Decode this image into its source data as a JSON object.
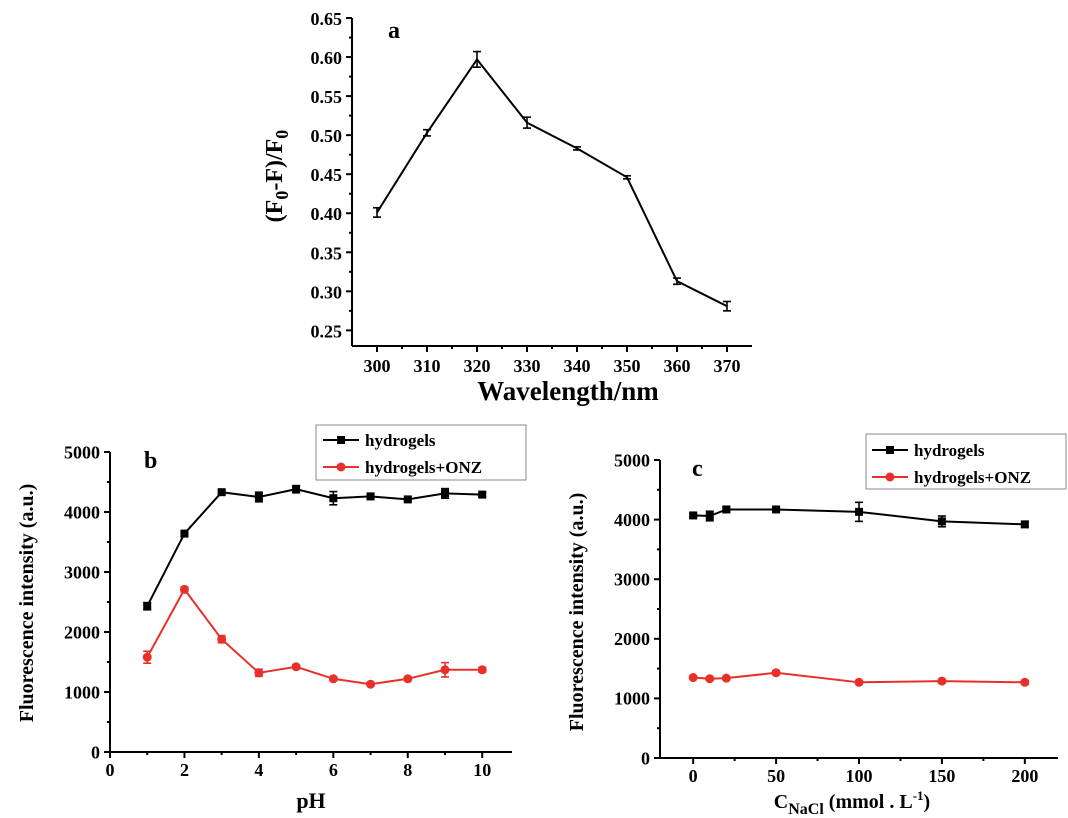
{
  "chart_data": [
    {
      "type": "line",
      "panel": "a",
      "xlabel": "Wavelength/nm",
      "ylabel_main": "(F",
      "ylabel_parts": [
        "(F",
        "0",
        "-F)/F",
        "0"
      ],
      "xlim": [
        295,
        375
      ],
      "ylim": [
        0.23,
        0.65
      ],
      "xticks": [
        "300",
        "310",
        "320",
        "330",
        "340",
        "350",
        "360",
        "370"
      ],
      "yticks": [
        "0.25",
        "0.30",
        "0.35",
        "0.40",
        "0.45",
        "0.50",
        "0.55",
        "0.60",
        "0.65"
      ],
      "color": "#000000",
      "series": [
        {
          "x": [
            300,
            310,
            320,
            330,
            340,
            350,
            360,
            370
          ],
          "y": [
            0.401,
            0.503,
            0.597,
            0.516,
            0.483,
            0.446,
            0.313,
            0.281
          ],
          "err": [
            0.006,
            0.004,
            0.01,
            0.007,
            0.002,
            0.002,
            0.004,
            0.006
          ],
          "color": "#000000"
        }
      ],
      "grid": false
    },
    {
      "type": "line",
      "panel": "b",
      "xlabel": "pH",
      "ylabel": "Fluorescence intensity (a.u.)",
      "xlim": [
        0,
        10.8
      ],
      "ylim": [
        0,
        5000
      ],
      "xticks": [
        "0",
        "2",
        "4",
        "6",
        "8",
        "10"
      ],
      "yticks": [
        "0",
        "1000",
        "2000",
        "3000",
        "4000",
        "5000"
      ],
      "legend_position": "top-right",
      "series": [
        {
          "name": "hydrogels",
          "color": "#000000",
          "marker": "square",
          "x": [
            1,
            2,
            3,
            4,
            5,
            6,
            7,
            8,
            9,
            10
          ],
          "y": [
            2430,
            3640,
            4330,
            4250,
            4380,
            4230,
            4260,
            4210,
            4310,
            4290
          ],
          "err": [
            60,
            40,
            30,
            80,
            60,
            110,
            50,
            30,
            80,
            30
          ]
        },
        {
          "name": "hydrogels+ONZ",
          "color": "#e8302a",
          "marker": "circle",
          "x": [
            1,
            2,
            3,
            4,
            5,
            6,
            7,
            8,
            9,
            10
          ],
          "y": [
            1580,
            2710,
            1880,
            1320,
            1420,
            1220,
            1130,
            1220,
            1370,
            1370
          ],
          "err": [
            100,
            40,
            60,
            60,
            30,
            30,
            30,
            30,
            120,
            40
          ]
        }
      ],
      "grid": false
    },
    {
      "type": "line",
      "panel": "c",
      "xlabel_parts": [
        "C",
        "NaCl",
        " (mmol . L",
        "-1",
        ")"
      ],
      "ylabel": "Fluorescence intensity (a.u.)",
      "xlim": [
        -20,
        220
      ],
      "ylim": [
        0,
        5000
      ],
      "xticks": [
        "0",
        "50",
        "100",
        "150",
        "200"
      ],
      "yticks": [
        "0",
        "1000",
        "2000",
        "3000",
        "4000",
        "5000"
      ],
      "legend_position": "top-right",
      "series": [
        {
          "name": "hydrogels",
          "color": "#000000",
          "marker": "square",
          "x": [
            0,
            10,
            20,
            50,
            100,
            150,
            200
          ],
          "y": [
            4070,
            4060,
            4170,
            4170,
            4130,
            3970,
            3920
          ],
          "err": [
            30,
            80,
            40,
            30,
            160,
            90,
            50
          ]
        },
        {
          "name": "hydrogels+ONZ",
          "color": "#e8302a",
          "marker": "circle",
          "x": [
            0,
            10,
            20,
            50,
            100,
            150,
            200
          ],
          "y": [
            1350,
            1330,
            1340,
            1430,
            1270,
            1290,
            1270
          ],
          "err": [
            20,
            20,
            20,
            30,
            20,
            30,
            30
          ]
        }
      ],
      "grid": false
    }
  ]
}
